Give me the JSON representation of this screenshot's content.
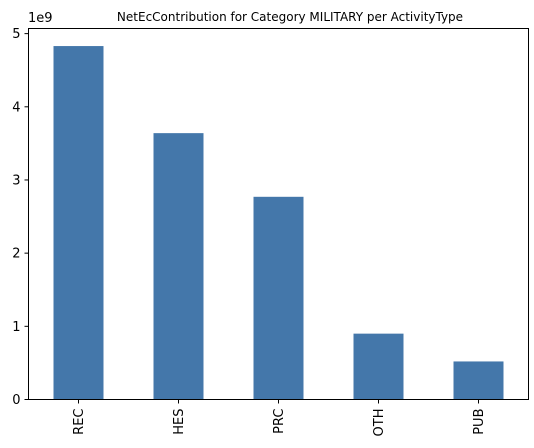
{
  "chart_data": {
    "type": "bar",
    "title": "NetEcContribution for Category MILITARY per ActivityType",
    "xlabel": "",
    "ylabel": "",
    "categories": [
      "REC",
      "HES",
      "PRC",
      "OTH",
      "PUB"
    ],
    "values": [
      4830000000,
      3640000000,
      2770000000,
      900000000,
      520000000
    ],
    "ylim": [
      0,
      5070000000
    ],
    "y_ticks": [
      0,
      1,
      2,
      3,
      4,
      5
    ],
    "y_tick_multiplier": 1000000000,
    "y_offset_label": "1e9",
    "x_tick_rotation": "vertical",
    "grid": false,
    "legend": "none",
    "bar_color": "#4477aa"
  }
}
